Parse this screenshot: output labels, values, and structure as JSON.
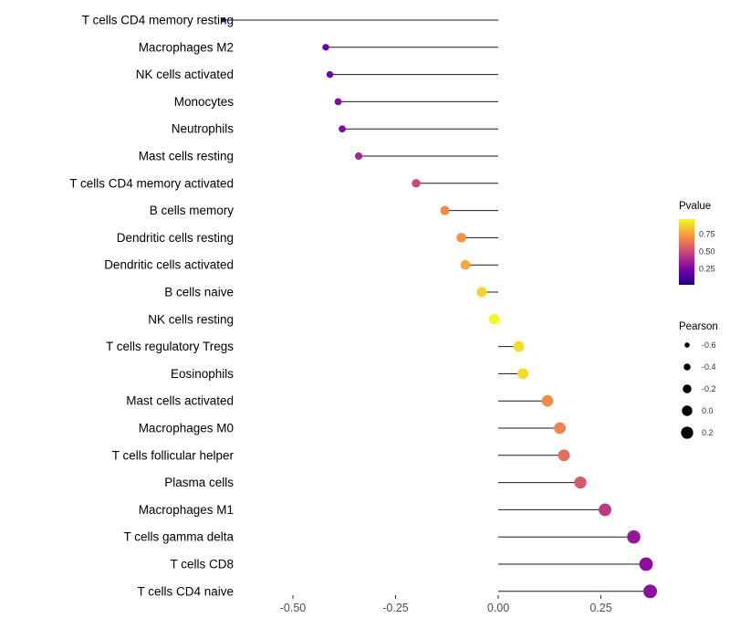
{
  "chart_data": {
    "type": "lollipop",
    "orientation": "horizontal",
    "title": "",
    "xlabel": "",
    "ylabel": "",
    "xlim": [
      -0.72,
      0.42
    ],
    "x_ticks": [
      -0.5,
      -0.25,
      0,
      0.25
    ],
    "x_tick_labels": [
      "-0.50",
      "-0.25",
      "0.00",
      "0.25"
    ],
    "grid": false,
    "baseline": 0,
    "color_scale": {
      "name": "plasma",
      "maps": "pvalue",
      "domain": [
        0.02,
        0.97
      ]
    },
    "size_scale": {
      "maps": "pearson",
      "domain": [
        -0.7,
        0.4
      ]
    },
    "points": [
      {
        "label": "T cells CD4 memory resting",
        "pearson": -0.67,
        "pvalue": 0.1
      },
      {
        "label": "Macrophages M2",
        "pearson": -0.42,
        "pvalue": 0.22
      },
      {
        "label": "NK cells activated",
        "pearson": -0.41,
        "pvalue": 0.23
      },
      {
        "label": "Monocytes",
        "pearson": -0.39,
        "pvalue": 0.27
      },
      {
        "label": "Neutrophils",
        "pearson": -0.38,
        "pvalue": 0.28
      },
      {
        "label": "Mast cells resting",
        "pearson": -0.34,
        "pvalue": 0.38
      },
      {
        "label": "T cells CD4 memory activated",
        "pearson": -0.2,
        "pvalue": 0.5
      },
      {
        "label": "B cells memory",
        "pearson": -0.13,
        "pvalue": 0.7
      },
      {
        "label": "Dendritic cells resting",
        "pearson": -0.09,
        "pvalue": 0.72
      },
      {
        "label": "Dendritic cells activated",
        "pearson": -0.08,
        "pvalue": 0.78
      },
      {
        "label": "B cells naive",
        "pearson": -0.04,
        "pvalue": 0.88
      },
      {
        "label": "NK cells resting",
        "pearson": -0.01,
        "pvalue": 0.97
      },
      {
        "label": "T cells regulatory Tregs",
        "pearson": 0.05,
        "pvalue": 0.9
      },
      {
        "label": "Eosinophils",
        "pearson": 0.06,
        "pvalue": 0.9
      },
      {
        "label": "Mast cells activated",
        "pearson": 0.12,
        "pvalue": 0.7
      },
      {
        "label": "Macrophages M0",
        "pearson": 0.15,
        "pvalue": 0.68
      },
      {
        "label": "T cells follicular helper",
        "pearson": 0.16,
        "pvalue": 0.62
      },
      {
        "label": "Plasma cells",
        "pearson": 0.2,
        "pvalue": 0.55
      },
      {
        "label": "Macrophages M1",
        "pearson": 0.26,
        "pvalue": 0.45
      },
      {
        "label": "T cells gamma delta",
        "pearson": 0.33,
        "pvalue": 0.33
      },
      {
        "label": "T cells CD8",
        "pearson": 0.36,
        "pvalue": 0.3
      },
      {
        "label": "T cells CD4 naive",
        "pearson": 0.37,
        "pvalue": 0.3
      }
    ]
  },
  "legend": {
    "color": {
      "title": "Pvalue",
      "tick_labels": [
        "0.75",
        "0.50",
        "0.25"
      ],
      "tick_values": [
        0.75,
        0.5,
        0.25
      ]
    },
    "size": {
      "title": "Pearson",
      "tick_labels": [
        "-0.6",
        "-0.4",
        "-0.2",
        "0.0",
        "0.2"
      ],
      "tick_values": [
        -0.6,
        -0.4,
        -0.2,
        0,
        0.2
      ]
    }
  },
  "colors": {
    "background": "#ffffff",
    "segment": "#1a1a1a",
    "category_text": "#000000",
    "axis_text": "#4d4d4d",
    "legend_dot": "#000000",
    "plasma_stops": [
      "#0d0887",
      "#7e03a8",
      "#cc4778",
      "#f89540",
      "#f0f921"
    ]
  }
}
